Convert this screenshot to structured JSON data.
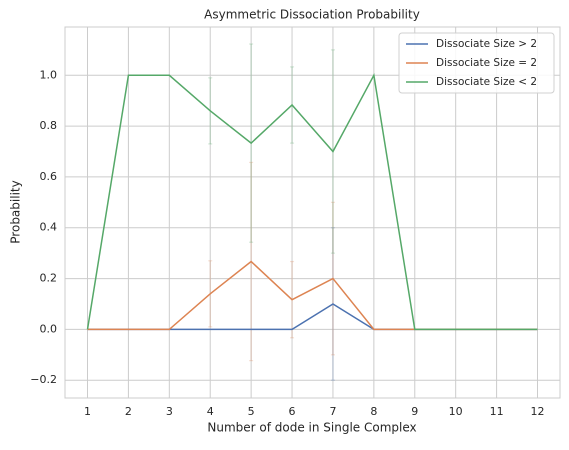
{
  "chart_data": {
    "type": "line",
    "title": "Asymmetric Dissociation Probability",
    "xlabel": "Number of dode in Single Complex",
    "ylabel": "Probability",
    "x": [
      1,
      2,
      3,
      4,
      5,
      6,
      7,
      8,
      9,
      10,
      11,
      12
    ],
    "series": [
      {
        "name": "Dissociate Size > 2",
        "color": "#4c72b0",
        "values": [
          0,
          0,
          0,
          0,
          0,
          0,
          0.1,
          0,
          0,
          0,
          0,
          0
        ],
        "errors": [
          0,
          0,
          0,
          0,
          0,
          0,
          0.3,
          0,
          0,
          0,
          0,
          0
        ]
      },
      {
        "name": "Dissociate Size = 2",
        "color": "#dd8452",
        "values": [
          0,
          0,
          0,
          0.14,
          0.267,
          0.117,
          0.2,
          0,
          0,
          0,
          0,
          0
        ],
        "errors": [
          0,
          0,
          0,
          0.13,
          0.39,
          0.15,
          0.3,
          0,
          0,
          0,
          0,
          0
        ]
      },
      {
        "name": "Dissociate Size < 2",
        "color": "#55a868",
        "values": [
          0,
          1,
          1,
          0.86,
          0.733,
          0.883,
          0.7,
          1,
          0,
          0,
          0,
          0
        ],
        "errors": [
          0,
          0,
          0,
          0.13,
          0.39,
          0.15,
          0.4,
          0,
          0,
          0,
          0,
          0
        ]
      }
    ],
    "xlim": [
      0.45,
      12.55
    ],
    "xticks": [
      1,
      2,
      3,
      4,
      5,
      6,
      7,
      8,
      9,
      10,
      11,
      12
    ],
    "ylim": [
      -0.27,
      1.19
    ],
    "yticks": [
      {
        "value": -0.2,
        "label": "−0.2"
      },
      {
        "value": 0,
        "label": "0.0"
      },
      0.2,
      0.4,
      0.6,
      0.8,
      {
        "value": 1,
        "label": "1.0"
      }
    ],
    "grid": true,
    "legend": "upper right"
  }
}
